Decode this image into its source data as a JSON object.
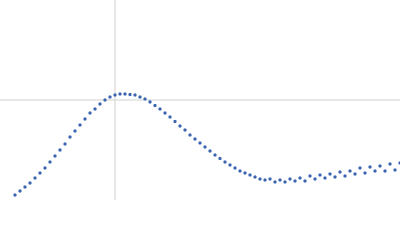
{
  "chart_data": {
    "type": "scatter",
    "color": "#3a64b0",
    "zero_lines": true,
    "xlim": [
      -115,
      285
    ],
    "ylim": [
      -100,
      100
    ],
    "x": [
      -100,
      -95,
      -90,
      -85,
      -80,
      -75,
      -70,
      -65,
      -60,
      -55,
      -50,
      -45,
      -40,
      -35,
      -30,
      -25,
      -20,
      -15,
      -10,
      -5,
      0,
      5,
      10,
      15,
      20,
      25,
      30,
      35,
      40,
      45,
      50,
      55,
      60,
      65,
      70,
      75,
      80,
      85,
      90,
      95,
      100,
      105,
      110,
      115,
      120,
      125,
      130,
      135,
      140,
      145,
      150,
      155,
      160,
      165,
      170,
      175,
      180,
      185,
      190,
      195,
      200,
      205,
      210,
      215,
      220,
      225,
      230,
      235,
      240,
      245,
      250,
      255,
      260,
      265,
      270,
      275,
      280,
      285
    ],
    "values": [
      -95,
      -91,
      -87,
      -83,
      -78,
      -73,
      -68,
      -62,
      -56,
      -50,
      -44,
      -37,
      -31,
      -25,
      -19,
      -13,
      -9,
      -4,
      0,
      3,
      5,
      6,
      6,
      5.5,
      5,
      3,
      1,
      -2,
      -5.5,
      -9,
      -13,
      -17,
      -21.5,
      -26,
      -30,
      -35,
      -39,
      -43,
      -47,
      -51,
      -55,
      -58.5,
      -62,
      -65,
      -68,
      -71,
      -73,
      -75,
      -77,
      -79,
      -80,
      -79,
      -82,
      -80,
      -82,
      -79,
      -81,
      -78,
      -81,
      -76,
      -79,
      -75,
      -78,
      -74,
      -77,
      -72,
      -76,
      -71,
      -74,
      -68,
      -73,
      -67,
      -71,
      -66,
      -71,
      -64,
      -70,
      -63
    ]
  }
}
